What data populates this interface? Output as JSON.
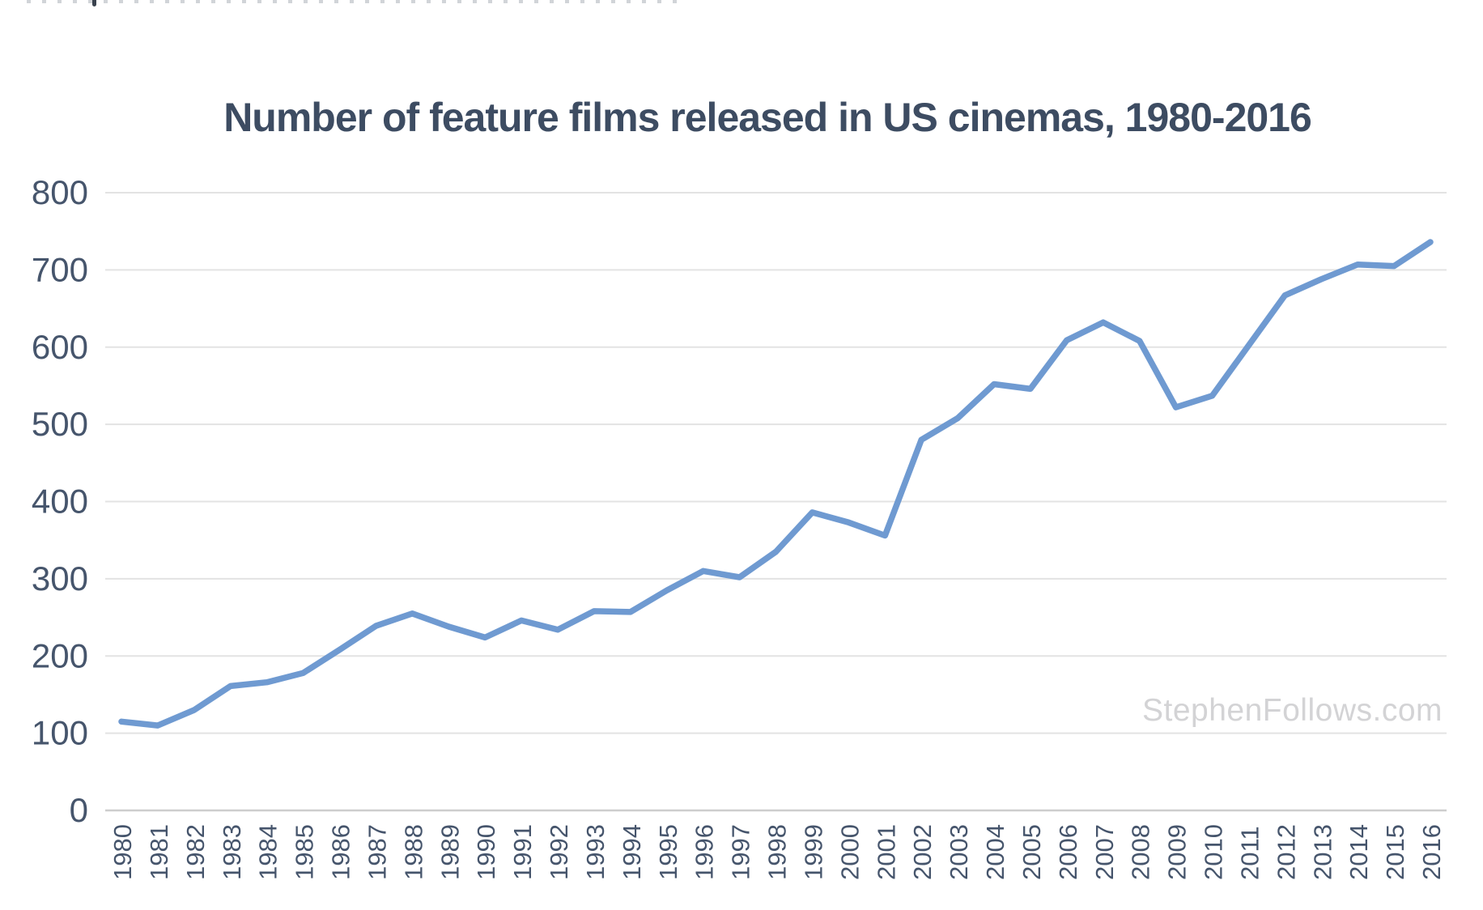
{
  "page": {
    "background": "#ffffff"
  },
  "header": {
    "title": "Number of feature films released in US cinemas, 1980-2016"
  },
  "watermark": {
    "text": "StephenFollows.com",
    "color": "#d3d3d5"
  },
  "chart_data": {
    "type": "line",
    "title": "Number of feature films released in US cinemas, 1980-2016",
    "x": [
      1980,
      1981,
      1982,
      1983,
      1984,
      1985,
      1986,
      1987,
      1988,
      1989,
      1990,
      1991,
      1992,
      1993,
      1994,
      1995,
      1996,
      1997,
      1998,
      1999,
      2000,
      2001,
      2002,
      2003,
      2004,
      2005,
      2006,
      2007,
      2008,
      2009,
      2010,
      2011,
      2012,
      2013,
      2014,
      2015,
      2016
    ],
    "values": [
      115,
      110,
      130,
      161,
      166,
      178,
      208,
      239,
      255,
      238,
      224,
      246,
      234,
      258,
      257,
      285,
      310,
      302,
      335,
      386,
      373,
      356,
      480,
      508,
      552,
      546,
      609,
      632,
      608,
      522,
      537,
      602,
      667,
      688,
      707,
      705,
      736
    ],
    "xlabel": "",
    "ylabel": "",
    "ylim": [
      0,
      800
    ],
    "yticks": [
      0,
      100,
      200,
      300,
      400,
      500,
      600,
      700,
      800
    ],
    "grid": "horizontal-only",
    "legend": "none",
    "line_color": "#6f9ad1",
    "tick_label_color": "#46556c",
    "title_color": "#3d4c62",
    "gridline_color": "#e3e3e3",
    "axisline_color": "#cdcdcd",
    "watermark": "StephenFollows.com"
  }
}
